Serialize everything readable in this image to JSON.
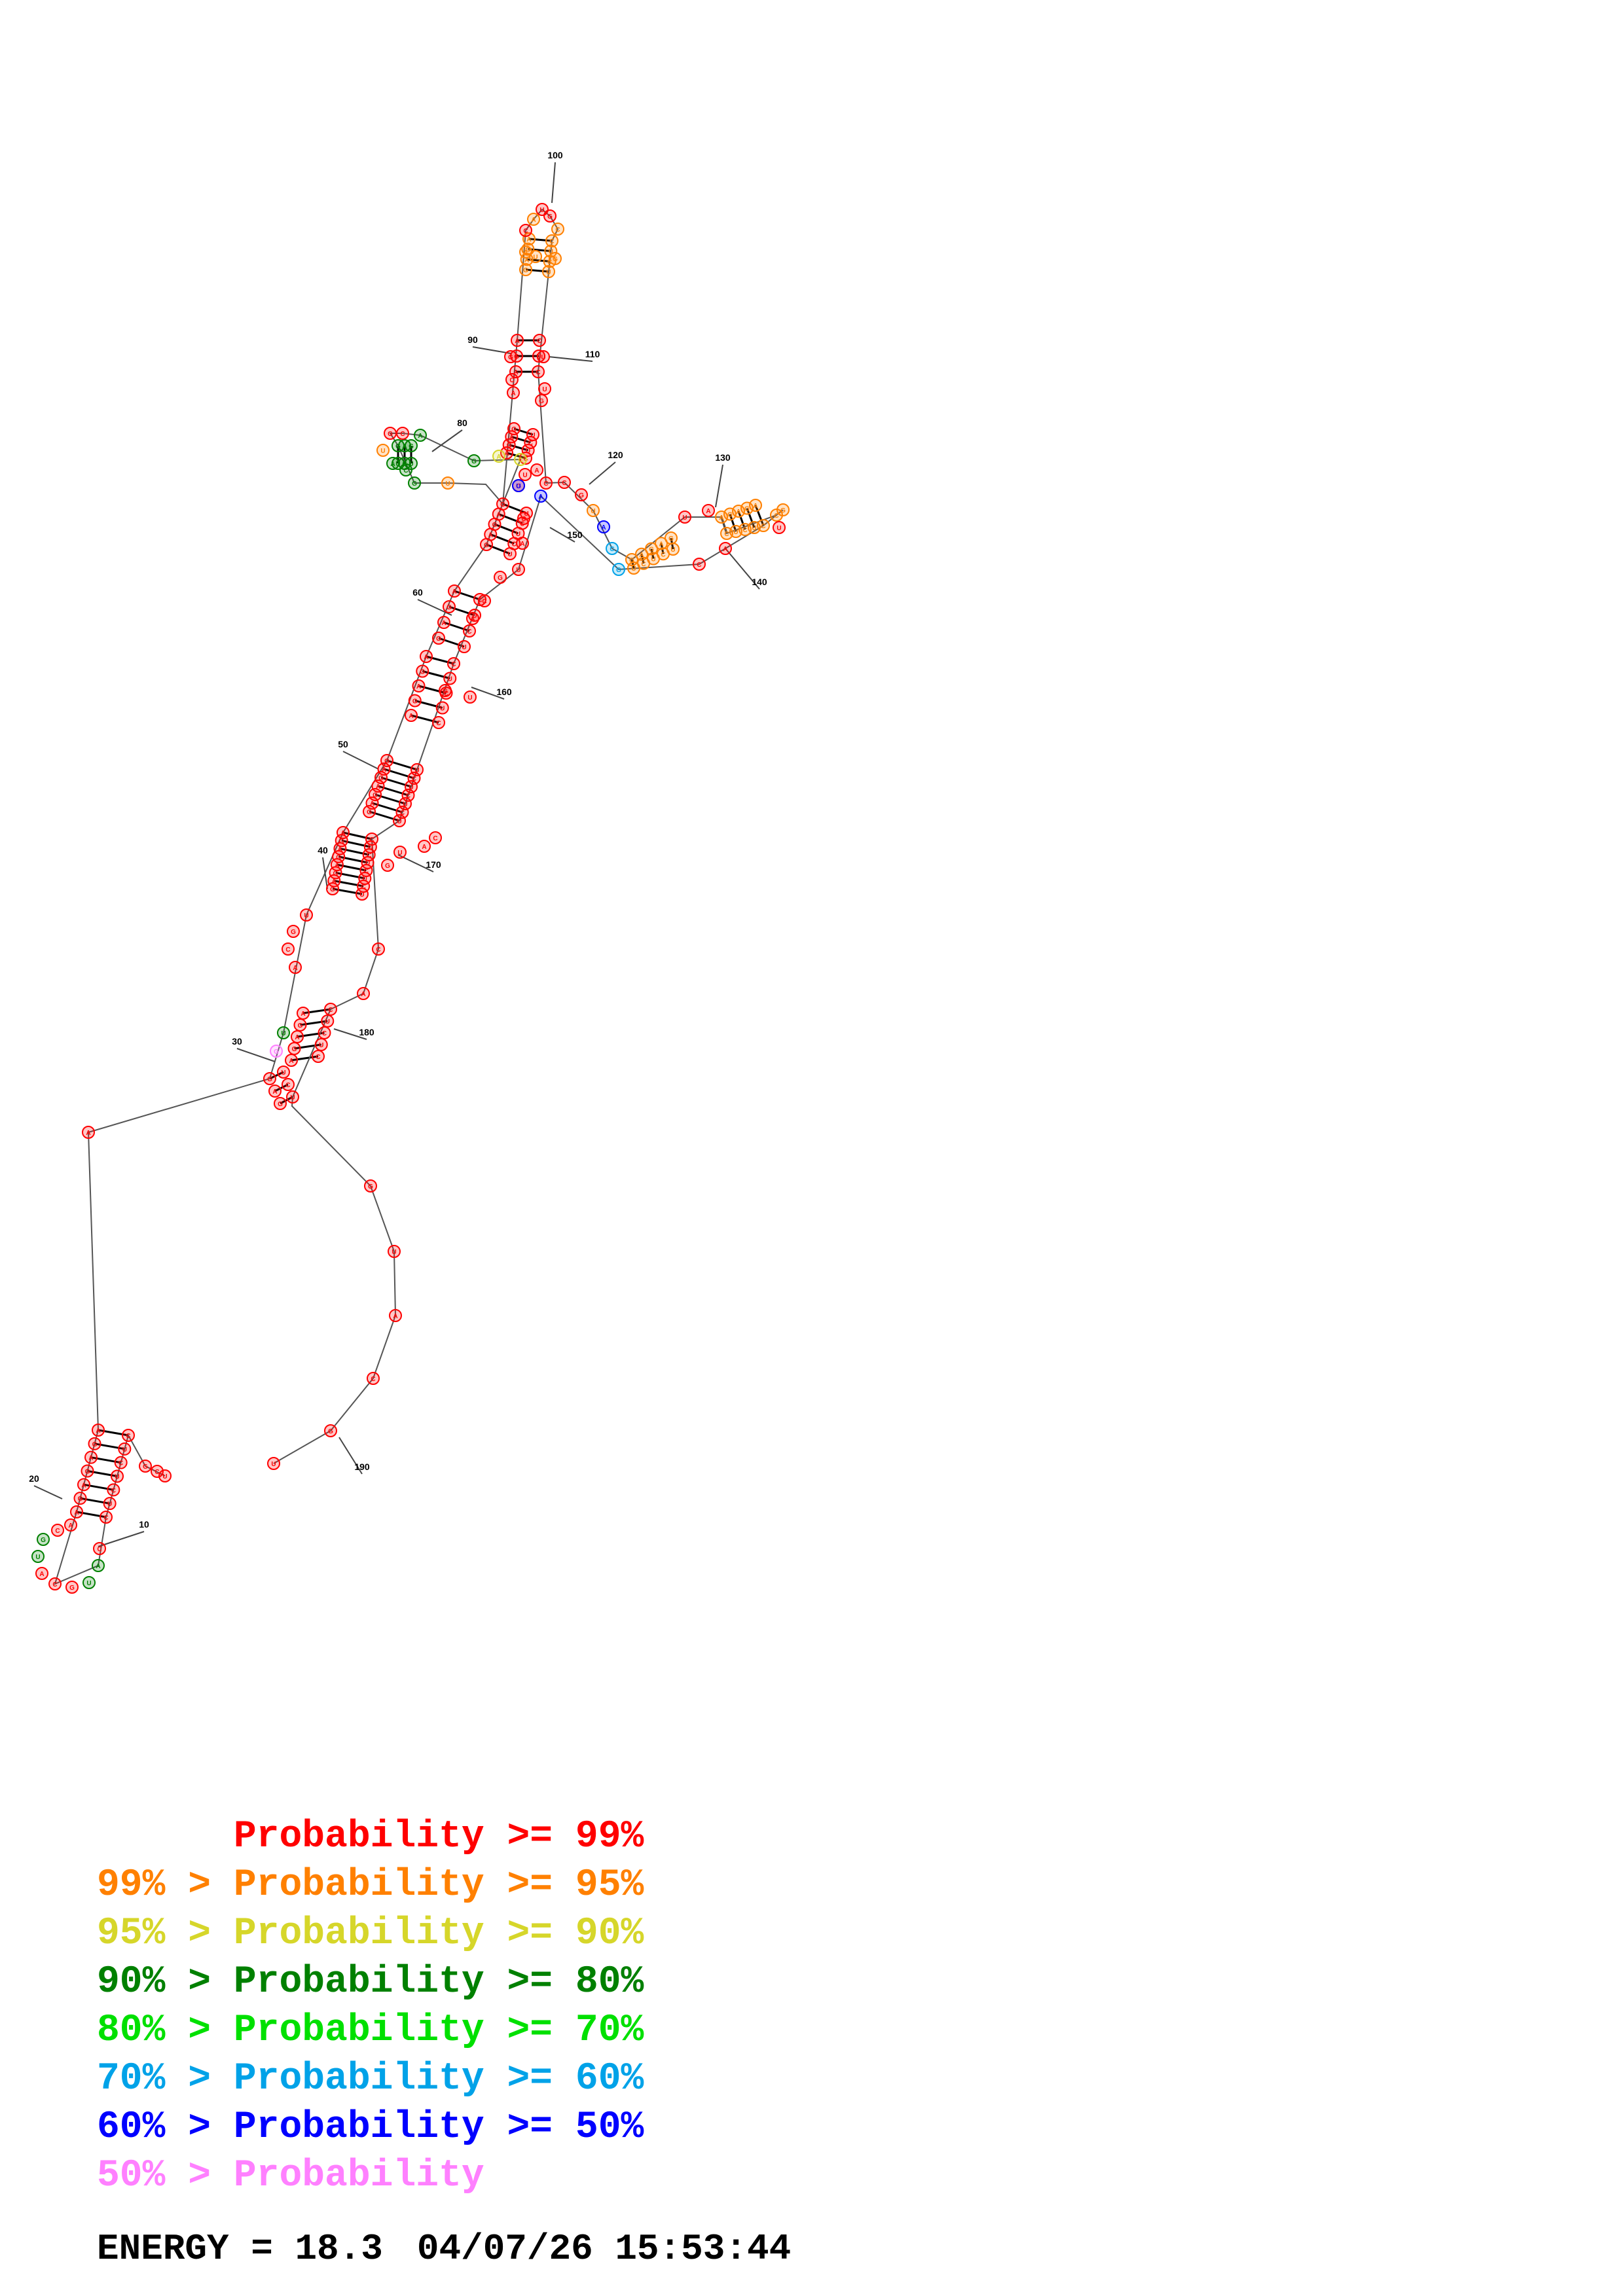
{
  "diagram": {
    "position_labels": [
      "10",
      "20",
      "30",
      "40",
      "50",
      "60",
      "80",
      "90",
      "100",
      "110",
      "120",
      "130",
      "140",
      "150",
      "160",
      "170",
      "180",
      "190"
    ],
    "probability_colors": {
      "p99": "#ff0000",
      "p95": "#ff8000",
      "p90": "#d6d62a",
      "p80": "#008000",
      "p70": "#00e000",
      "p60": "#00a2e8",
      "p50": "#0000ff",
      "low": "#ff80ff"
    },
    "nucleotides": [
      "A",
      "C",
      "G",
      "U"
    ]
  },
  "legend": [
    {
      "prefix": "",
      "text": "Probability >= 99%",
      "color": "#ff0000"
    },
    {
      "prefix": "99% > ",
      "text": "Probability >= 95%",
      "color": "#ff8000"
    },
    {
      "prefix": "95% > ",
      "text": "Probability >= 90%",
      "color": "#d6d62a"
    },
    {
      "prefix": "90% > ",
      "text": "Probability >= 80%",
      "color": "#008000"
    },
    {
      "prefix": "80% > ",
      "text": "Probability >= 70%",
      "color": "#00e000"
    },
    {
      "prefix": "70% > ",
      "text": "Probability >= 60%",
      "color": "#00a2e8"
    },
    {
      "prefix": "60% > ",
      "text": "Probability >= 50%",
      "color": "#0000ff"
    },
    {
      "prefix": "50% > ",
      "text": "Probability",
      "color": "#ff80ff"
    }
  ],
  "footer": {
    "energy": "ENERGY = 18.3",
    "timestamp": "04/07/26 15:53:44"
  }
}
